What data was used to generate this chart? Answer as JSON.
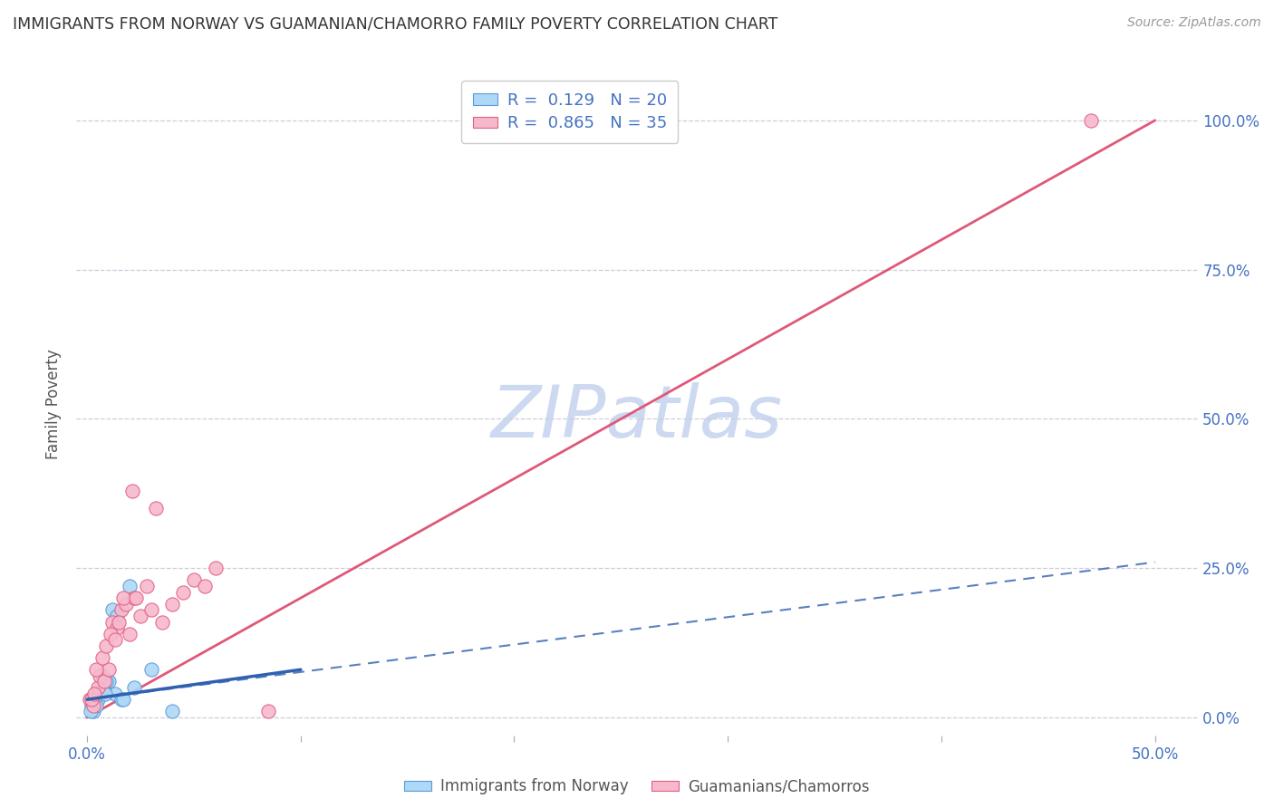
{
  "title": "IMMIGRANTS FROM NORWAY VS GUAMANIAN/CHAMORRO FAMILY POVERTY CORRELATION CHART",
  "source": "Source: ZipAtlas.com",
  "ylabel": "Family Poverty",
  "y_tick_labels": [
    "0.0%",
    "25.0%",
    "50.0%",
    "75.0%",
    "100.0%"
  ],
  "y_tick_values": [
    0,
    25,
    50,
    75,
    100
  ],
  "x_tick_values": [
    0,
    10,
    20,
    30,
    40,
    50
  ],
  "xlim": [
    -0.5,
    52
  ],
  "ylim": [
    -3,
    108
  ],
  "norway_R": 0.129,
  "norway_N": 20,
  "guam_R": 0.865,
  "guam_N": 35,
  "norway_color": "#add8f7",
  "norway_edge": "#5b9bd5",
  "guam_color": "#f7b8cc",
  "guam_edge": "#e06080",
  "norway_line_color": "#3060b0",
  "guam_line_color": "#e05878",
  "watermark_color": "#ccd9f0",
  "watermark_text": "ZIPatlas",
  "norway_scatter_x": [
    0.2,
    0.5,
    0.8,
    1.0,
    1.3,
    1.6,
    0.3,
    0.7,
    0.9,
    2.0,
    3.0,
    0.4,
    0.6,
    1.2,
    1.4,
    0.15,
    0.85,
    1.7,
    2.2,
    4.0
  ],
  "norway_scatter_y": [
    2,
    3,
    5,
    6,
    4,
    3,
    1,
    7,
    6,
    22,
    8,
    2,
    4,
    18,
    17,
    1,
    4,
    3,
    5,
    1
  ],
  "guam_scatter_x": [
    0.1,
    0.3,
    0.5,
    0.6,
    0.8,
    1.0,
    1.2,
    1.4,
    1.6,
    1.8,
    2.0,
    2.2,
    2.5,
    2.8,
    3.0,
    3.5,
    4.0,
    4.5,
    5.0,
    5.5,
    6.0,
    0.4,
    0.7,
    0.9,
    1.1,
    1.3,
    1.5,
    1.7,
    2.3,
    0.2,
    0.35,
    8.5,
    3.2,
    2.1,
    47.0
  ],
  "guam_scatter_y": [
    3,
    2,
    5,
    7,
    6,
    8,
    16,
    15,
    18,
    19,
    14,
    20,
    17,
    22,
    18,
    16,
    19,
    21,
    23,
    22,
    25,
    8,
    10,
    12,
    14,
    13,
    16,
    20,
    20,
    3,
    4,
    1,
    35,
    38,
    100
  ],
  "norway_trendline_x": [
    0,
    10
  ],
  "norway_trendline_y": [
    3,
    8
  ],
  "guam_trendline_x": [
    0,
    50
  ],
  "guam_trendline_y": [
    0,
    100
  ],
  "legend_label_norway": "Immigrants from Norway",
  "legend_label_guam": "Guamanians/Chamorros",
  "background_color": "#ffffff",
  "grid_color": "#ccccdd",
  "axis_color": "#aaaaaa",
  "right_axis_color": "#4472c4"
}
